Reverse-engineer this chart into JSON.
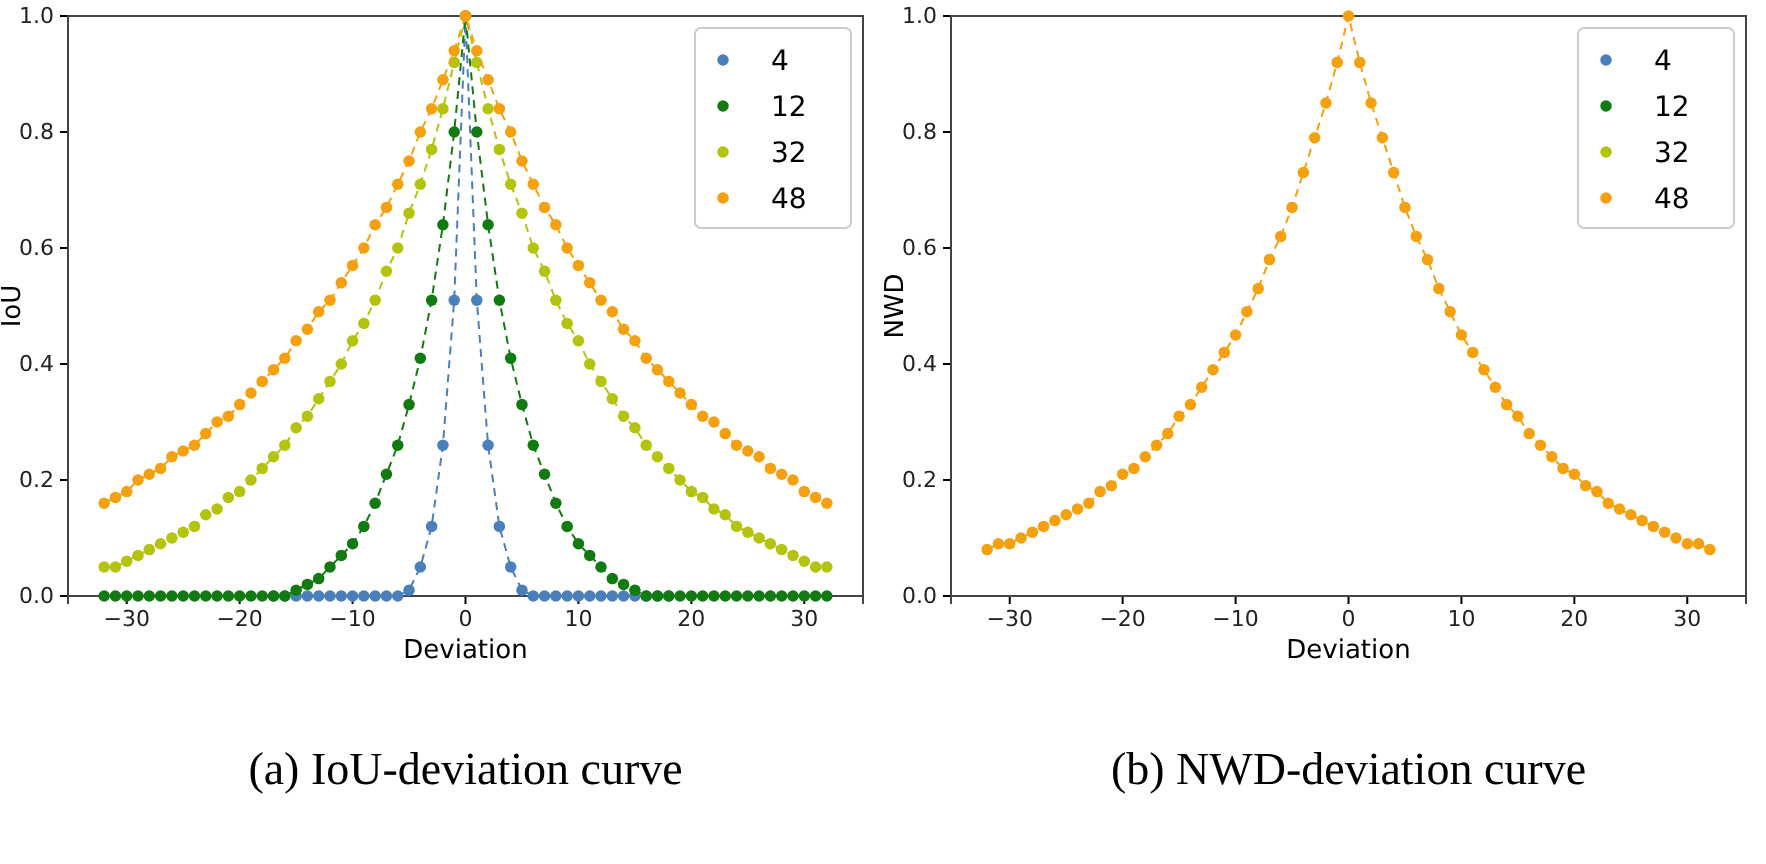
{
  "chart_data": [
    {
      "type": "line",
      "xlabel": "Deviation",
      "ylabel": "IoU",
      "annotations": [
        "(a) IoU-deviation curve"
      ],
      "marker": "circle",
      "line_style": "dashed",
      "legend": "top right",
      "grid": false,
      "xlim": [
        -35.2,
        35.2
      ],
      "ylim": [
        0,
        1
      ],
      "xticks": [
        {
          "value": -30,
          "label": "−30"
        },
        {
          "value": -20,
          "label": "−20"
        },
        {
          "value": -10,
          "label": "−10"
        },
        {
          "value": 0,
          "label": "0"
        },
        {
          "value": 10,
          "label": "10"
        },
        {
          "value": 20,
          "label": "20"
        },
        {
          "value": 30,
          "label": "30"
        }
      ],
      "yticks": [
        {
          "value": 0,
          "label": "0.0"
        },
        {
          "value": 0.2,
          "label": "0.2"
        },
        {
          "value": 0.4,
          "label": "0.4"
        },
        {
          "value": 0.6,
          "label": "0.6"
        },
        {
          "value": 0.8,
          "label": "0.8"
        },
        {
          "value": 1,
          "label": "1.0"
        }
      ],
      "x": [
        -32,
        -31,
        -30,
        -29,
        -28,
        -27,
        -26,
        -25,
        -24,
        -23,
        -22,
        -21,
        -20,
        -19,
        -18,
        -17,
        -16,
        -15,
        -14,
        -13,
        -12,
        -11,
        -10,
        -9,
        -8,
        -7,
        -6,
        -5,
        -4,
        -3,
        -2,
        -1,
        0,
        1,
        2,
        3,
        4,
        5,
        6,
        7,
        8,
        9,
        10,
        11,
        12,
        13,
        14,
        15,
        16,
        17,
        18,
        19,
        20,
        21,
        22,
        23,
        24,
        25,
        26,
        27,
        28,
        29,
        30,
        31,
        32
      ],
      "series": [
        {
          "name": "4",
          "color": "#4a7fba",
          "values": [
            null,
            null,
            null,
            null,
            null,
            null,
            null,
            null,
            null,
            null,
            null,
            null,
            null,
            null,
            null,
            0,
            0,
            0,
            0,
            0,
            0,
            0,
            0,
            0,
            0,
            0,
            0,
            0.01,
            0.05,
            0.12,
            0.26,
            0.51,
            1,
            0.51,
            0.26,
            0.12,
            0.05,
            0.01,
            0,
            0,
            0,
            0,
            0,
            0,
            0,
            0,
            0,
            0,
            0,
            0,
            0,
            null,
            null,
            null,
            null,
            null,
            null,
            null,
            null,
            null,
            null,
            null,
            null,
            null,
            null
          ]
        },
        {
          "name": "12",
          "color": "#117a11",
          "values": [
            0,
            0,
            0,
            0,
            0,
            0,
            0,
            0,
            0,
            0,
            0,
            0,
            0,
            0,
            0,
            0,
            0,
            0.01,
            0.02,
            0.03,
            0.05,
            0.07,
            0.09,
            0.12,
            0.16,
            0.21,
            0.26,
            0.33,
            0.41,
            0.51,
            0.64,
            0.8,
            1,
            0.8,
            0.64,
            0.51,
            0.41,
            0.33,
            0.26,
            0.21,
            0.16,
            0.12,
            0.09,
            0.07,
            0.05,
            0.03,
            0.02,
            0.01,
            0,
            0,
            0,
            0,
            0,
            0,
            0,
            0,
            0,
            0,
            0,
            0,
            0,
            0,
            0,
            0,
            0
          ]
        },
        {
          "name": "32",
          "color": "#b4c30e",
          "values": [
            0.05,
            0.05,
            0.06,
            0.07,
            0.08,
            0.09,
            0.1,
            0.11,
            0.12,
            0.14,
            0.15,
            0.17,
            0.18,
            0.2,
            0.22,
            0.24,
            0.26,
            0.29,
            0.31,
            0.34,
            0.37,
            0.4,
            0.44,
            0.47,
            0.51,
            0.56,
            0.6,
            0.66,
            0.71,
            0.77,
            0.84,
            0.92,
            1,
            0.92,
            0.84,
            0.77,
            0.71,
            0.66,
            0.6,
            0.56,
            0.51,
            0.47,
            0.44,
            0.4,
            0.37,
            0.34,
            0.31,
            0.29,
            0.26,
            0.24,
            0.22,
            0.2,
            0.18,
            0.17,
            0.15,
            0.14,
            0.12,
            0.11,
            0.1,
            0.09,
            0.08,
            0.07,
            0.06,
            0.05,
            0.05
          ]
        },
        {
          "name": "48",
          "color": "#f5a00f",
          "values": [
            0.16,
            0.17,
            0.18,
            0.2,
            0.21,
            0.22,
            0.24,
            0.25,
            0.26,
            0.28,
            0.3,
            0.31,
            0.33,
            0.35,
            0.37,
            0.39,
            0.41,
            0.44,
            0.46,
            0.49,
            0.51,
            0.54,
            0.57,
            0.6,
            0.64,
            0.67,
            0.71,
            0.75,
            0.8,
            0.84,
            0.89,
            0.94,
            1,
            0.94,
            0.89,
            0.84,
            0.8,
            0.75,
            0.71,
            0.67,
            0.64,
            0.6,
            0.57,
            0.54,
            0.51,
            0.49,
            0.46,
            0.44,
            0.41,
            0.39,
            0.37,
            0.35,
            0.33,
            0.31,
            0.3,
            0.28,
            0.26,
            0.25,
            0.24,
            0.22,
            0.21,
            0.2,
            0.18,
            0.17,
            0.16
          ]
        }
      ]
    },
    {
      "type": "line",
      "xlabel": "Deviation",
      "ylabel": "NWD",
      "annotations": [
        "(b) NWD-deviation curve"
      ],
      "marker": "circle",
      "line_style": "dashed",
      "legend": "top right",
      "grid": false,
      "xlim": [
        -35.2,
        35.2
      ],
      "ylim": [
        0,
        1
      ],
      "xticks": [
        {
          "value": -30,
          "label": "−30"
        },
        {
          "value": -20,
          "label": "−20"
        },
        {
          "value": -10,
          "label": "−10"
        },
        {
          "value": 0,
          "label": "0"
        },
        {
          "value": 10,
          "label": "10"
        },
        {
          "value": 20,
          "label": "20"
        },
        {
          "value": 30,
          "label": "30"
        }
      ],
      "yticks": [
        {
          "value": 0,
          "label": "0.0"
        },
        {
          "value": 0.2,
          "label": "0.2"
        },
        {
          "value": 0.4,
          "label": "0.4"
        },
        {
          "value": 0.6,
          "label": "0.6"
        },
        {
          "value": 0.8,
          "label": "0.8"
        },
        {
          "value": 1,
          "label": "1.0"
        }
      ],
      "x": [
        -32,
        -31,
        -30,
        -29,
        -28,
        -27,
        -26,
        -25,
        -24,
        -23,
        -22,
        -21,
        -20,
        -19,
        -18,
        -17,
        -16,
        -15,
        -14,
        -13,
        -12,
        -11,
        -10,
        -9,
        -8,
        -7,
        -6,
        -5,
        -4,
        -3,
        -2,
        -1,
        0,
        1,
        2,
        3,
        4,
        5,
        6,
        7,
        8,
        9,
        10,
        11,
        12,
        13,
        14,
        15,
        16,
        17,
        18,
        19,
        20,
        21,
        22,
        23,
        24,
        25,
        26,
        27,
        28,
        29,
        30,
        31,
        32
      ],
      "series": [
        {
          "name": "4",
          "color": "#4a7fba",
          "values": [
            null,
            null,
            null,
            null,
            null,
            null,
            null,
            null,
            null,
            null,
            null,
            null,
            null,
            null,
            null,
            null,
            null,
            null,
            null,
            null,
            null,
            null,
            null,
            null,
            null,
            null,
            null,
            null,
            null,
            null,
            null,
            null,
            null,
            null,
            null,
            null,
            null,
            null,
            null,
            null,
            null,
            null,
            null,
            null,
            null,
            null,
            null,
            null,
            null,
            null,
            null,
            null,
            null,
            null,
            null,
            null,
            null,
            null,
            null,
            null,
            null,
            null,
            null,
            null,
            null
          ]
        },
        {
          "name": "12",
          "color": "#117a11",
          "values": [
            null,
            null,
            null,
            null,
            null,
            null,
            null,
            null,
            null,
            null,
            null,
            null,
            null,
            null,
            null,
            null,
            null,
            null,
            null,
            null,
            null,
            null,
            null,
            null,
            null,
            null,
            null,
            null,
            null,
            null,
            null,
            null,
            null,
            null,
            null,
            null,
            null,
            null,
            null,
            null,
            null,
            null,
            null,
            null,
            null,
            null,
            null,
            null,
            null,
            null,
            null,
            null,
            null,
            null,
            null,
            null,
            null,
            null,
            null,
            null,
            null,
            null,
            null,
            null,
            null
          ]
        },
        {
          "name": "32",
          "color": "#b4c30e",
          "values": [
            null,
            null,
            null,
            null,
            null,
            null,
            null,
            null,
            null,
            null,
            null,
            null,
            null,
            null,
            null,
            null,
            null,
            null,
            null,
            null,
            null,
            null,
            null,
            null,
            null,
            null,
            null,
            null,
            null,
            null,
            null,
            null,
            null,
            null,
            null,
            null,
            null,
            null,
            null,
            null,
            null,
            null,
            null,
            null,
            null,
            null,
            null,
            null,
            null,
            null,
            null,
            null,
            null,
            null,
            null,
            null,
            null,
            null,
            null,
            null,
            null,
            null,
            null,
            null,
            null
          ]
        },
        {
          "name": "48",
          "color": "#f5a00f",
          "values": [
            0.08,
            0.09,
            0.09,
            0.1,
            0.11,
            0.12,
            0.13,
            0.14,
            0.15,
            0.16,
            0.18,
            0.19,
            0.21,
            0.22,
            0.24,
            0.26,
            0.28,
            0.31,
            0.33,
            0.36,
            0.39,
            0.42,
            0.45,
            0.49,
            0.53,
            0.58,
            0.62,
            0.67,
            0.73,
            0.79,
            0.85,
            0.92,
            1,
            0.92,
            0.85,
            0.79,
            0.73,
            0.67,
            0.62,
            0.58,
            0.53,
            0.49,
            0.45,
            0.42,
            0.39,
            0.36,
            0.33,
            0.31,
            0.28,
            0.26,
            0.24,
            0.22,
            0.21,
            0.19,
            0.18,
            0.16,
            0.15,
            0.14,
            0.13,
            0.12,
            0.11,
            0.1,
            0.09,
            0.09,
            0.08
          ]
        }
      ]
    }
  ]
}
